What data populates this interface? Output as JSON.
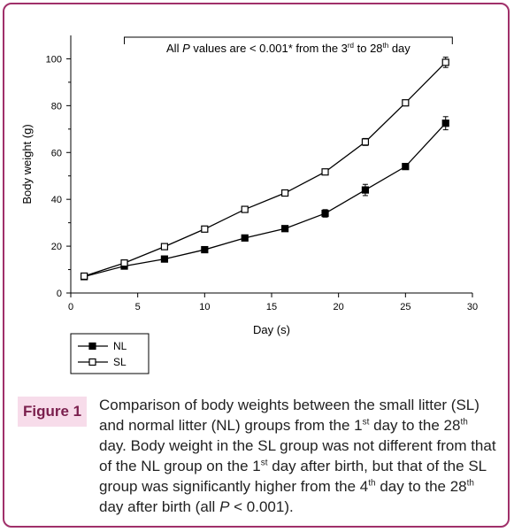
{
  "chart_data": {
    "type": "line",
    "xlabel": "Day (s)",
    "ylabel": "Body weight (g)",
    "xlim": [
      0,
      30
    ],
    "ylim": [
      0,
      110
    ],
    "xticks": [
      "0",
      "5",
      "10",
      "15",
      "20",
      "25",
      "30"
    ],
    "yticks": [
      "0",
      "20",
      "40",
      "60",
      "80",
      "100"
    ],
    "grid": false,
    "legend_position": "below-left",
    "annotation": {
      "prefix": "All ",
      "p_symbol": "P",
      "mid": " values are < 0.001* from the 3",
      "sup1": "rd",
      "mid2": " to 28",
      "sup2": "th",
      "suffix": " day",
      "x_start": 4,
      "x_end": 28.5
    },
    "x": [
      1,
      4,
      7,
      10,
      13,
      16,
      19,
      22,
      25,
      28
    ],
    "series": [
      {
        "name": "NL",
        "marker": "filled-square",
        "values": [
          7,
          11.5,
          14.5,
          18.5,
          23.5,
          27.5,
          34,
          44,
          54,
          72.5
        ],
        "errors": [
          0.6,
          0.6,
          0.7,
          0.8,
          1.0,
          1.0,
          1.6,
          2.4,
          1.0,
          2.8
        ]
      },
      {
        "name": "SL",
        "marker": "open-square",
        "values": [
          7.2,
          12.8,
          19.8,
          27.3,
          35.7,
          42.7,
          51.7,
          64.5,
          81.2,
          98.5
        ],
        "errors": [
          0.6,
          0.6,
          0.8,
          0.9,
          0.9,
          0.9,
          1.0,
          1.5,
          1.2,
          2.2
        ]
      }
    ],
    "colors": {
      "line": "#000000",
      "frame": "#a0306a",
      "figlabel_bg": "#f7dcea",
      "figlabel_text": "#7a1f4d"
    }
  },
  "caption": {
    "label": "Figure 1",
    "t1": "Comparison of body weights between the small litter (SL) and normal litter (NL) groups from the 1",
    "s1": "st",
    "t2": " day to the 28",
    "s2": "th",
    "t3": " day. Body weight in the SL group was not different from that of the NL group on the 1",
    "s3": "st",
    "t4": " day after birth, but that of the SL group was significantly higher from the 4",
    "s4": "th",
    "t5": " day to the 28",
    "s5": "th",
    "t6": " day after birth (all ",
    "p": "P",
    "t7": " < 0.001)."
  }
}
